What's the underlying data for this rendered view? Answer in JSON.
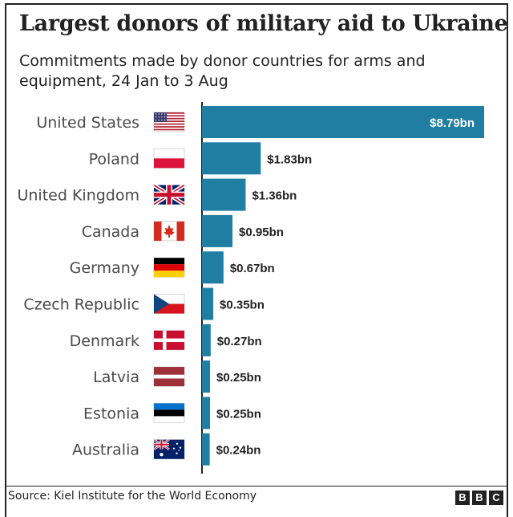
{
  "header": {
    "title": "Largest donors of military aid to Ukraine",
    "subtitle": "Commitments made by donor countries for arms and equipment, 24 Jan to 3 Aug"
  },
  "footer": {
    "source": "Source: Kiel Institute for the World Economy",
    "logo_letters": [
      "B",
      "B",
      "C"
    ]
  },
  "colors": {
    "bar": "#1f7ea1",
    "text": "#222222",
    "label": "#4a4a4a",
    "inside_label": "#ffffff"
  },
  "chart_data": {
    "type": "bar",
    "orientation": "horizontal",
    "title": "Largest donors of military aid to Ukraine",
    "unit": "US$ billions",
    "categories": [
      "United States",
      "Poland",
      "United Kingdom",
      "Canada",
      "Germany",
      "Czech Republic",
      "Denmark",
      "Latvia",
      "Estonia",
      "Australia"
    ],
    "values": [
      8.79,
      1.83,
      1.36,
      0.95,
      0.67,
      0.35,
      0.27,
      0.25,
      0.25,
      0.24
    ],
    "value_labels": [
      "$8.79bn",
      "$1.83bn",
      "$1.36bn",
      "$0.95bn",
      "$0.67bn",
      "$0.35bn",
      "$0.27bn",
      "$0.25bn",
      "$0.25bn",
      "$0.24bn"
    ],
    "flags": [
      "us-flag-icon",
      "poland-flag-icon",
      "uk-flag-icon",
      "canada-flag-icon",
      "germany-flag-icon",
      "czech-flag-icon",
      "denmark-flag-icon",
      "latvia-flag-icon",
      "estonia-flag-icon",
      "australia-flag-icon"
    ],
    "xlim": [
      0,
      8.79
    ]
  }
}
